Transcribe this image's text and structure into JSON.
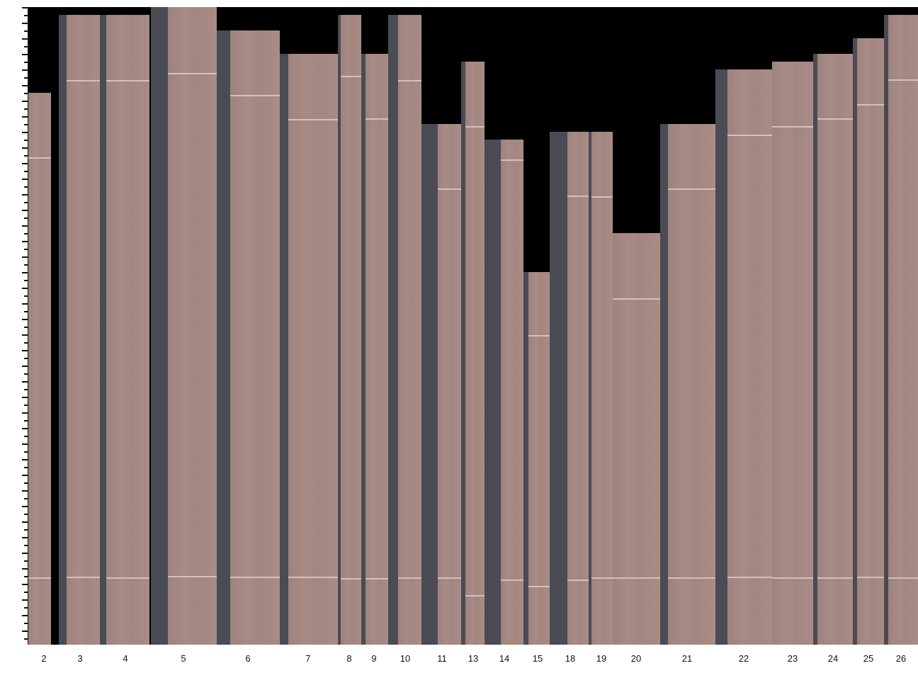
{
  "colors": {
    "background": "#000000",
    "veneer": "#a68983",
    "gap": "#4a4b54",
    "marker_line": "#d9cccb",
    "ruler": "#111111"
  },
  "strips": [
    {
      "label": "2"
    },
    {
      "label": "3"
    },
    {
      "label": "4"
    },
    {
      "label": "5"
    },
    {
      "label": "6"
    },
    {
      "label": "7"
    },
    {
      "label": "8"
    },
    {
      "label": "9"
    },
    {
      "label": "10"
    },
    {
      "label": "11"
    },
    {
      "label": "13"
    },
    {
      "label": "14"
    },
    {
      "label": "15"
    },
    {
      "label": "18"
    },
    {
      "label": "19"
    },
    {
      "label": "20"
    },
    {
      "label": "21"
    },
    {
      "label": "22"
    },
    {
      "label": "23"
    },
    {
      "label": "24"
    },
    {
      "label": "25"
    },
    {
      "label": "26"
    }
  ]
}
